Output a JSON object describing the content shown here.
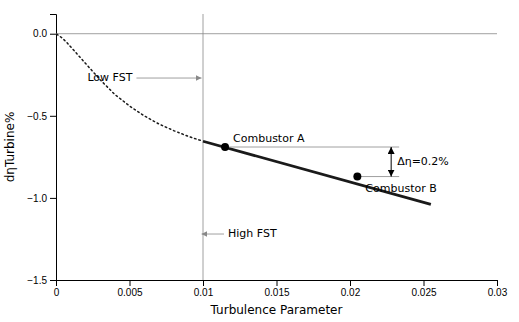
{
  "chart_data": {
    "type": "line",
    "xlabel": "Turbulence Parameter",
    "ylabel": "dηTurbine%",
    "xlim": [
      0,
      0.03
    ],
    "ylim": [
      -1.5,
      0.12
    ],
    "xticks": [
      0,
      0.005,
      0.01,
      0.015,
      0.02,
      0.025,
      0.03
    ],
    "yticks": [
      {
        "value": 0,
        "label": "0.0"
      },
      {
        "value": -0.5,
        "label": "−0.5"
      },
      {
        "value": -1,
        "label": "−1.0"
      },
      {
        "value": -1.5,
        "label": "−1.5"
      }
    ],
    "grid": false,
    "series": [
      {
        "type": "line",
        "line_style": "dotted",
        "color": "#1a1a1a",
        "x": [
          5e-05,
          0.0001,
          0.0002,
          0.0004,
          0.0007,
          0.001,
          0.0015,
          0.002,
          0.003,
          0.004,
          0.005,
          0.006,
          0.007,
          0.008,
          0.009,
          0.01
        ],
        "values": [
          -0.003,
          -0.006,
          -0.012,
          -0.025,
          -0.05,
          -0.08,
          -0.13,
          -0.18,
          -0.28,
          -0.37,
          -0.44,
          -0.5,
          -0.55,
          -0.59,
          -0.625,
          -0.655
        ]
      },
      {
        "type": "line",
        "line_style": "solid",
        "color": "#1a1a1a",
        "x": [
          0.01,
          0.0255
        ],
        "values": [
          -0.655,
          -1.04
        ]
      },
      {
        "type": "scatter",
        "marker": "circle",
        "color": "#000000",
        "x": [
          0.0115,
          0.0205
        ],
        "values": [
          -0.69,
          -0.87
        ],
        "labels": [
          "Combustor A",
          "Combustor B"
        ]
      }
    ],
    "reference_lines": [
      {
        "axis": "y",
        "value": 0.0,
        "color": "#888888"
      },
      {
        "axis": "x",
        "value": 0.01,
        "color": "#888888"
      }
    ],
    "delta_arrow": {
      "text": "Δη=0.2%",
      "x": 0.0228,
      "y_top": -0.69,
      "y_bottom": -0.87
    },
    "annotations": [
      {
        "text": "Low FST",
        "x": 0.0052,
        "y": -0.27,
        "arrow_x": 0.0099,
        "arrow_y": -0.27
      },
      {
        "text": "High FST",
        "x": 0.0117,
        "y": -1.22,
        "arrow_x": 0.0099,
        "arrow_y": -1.22
      }
    ]
  }
}
